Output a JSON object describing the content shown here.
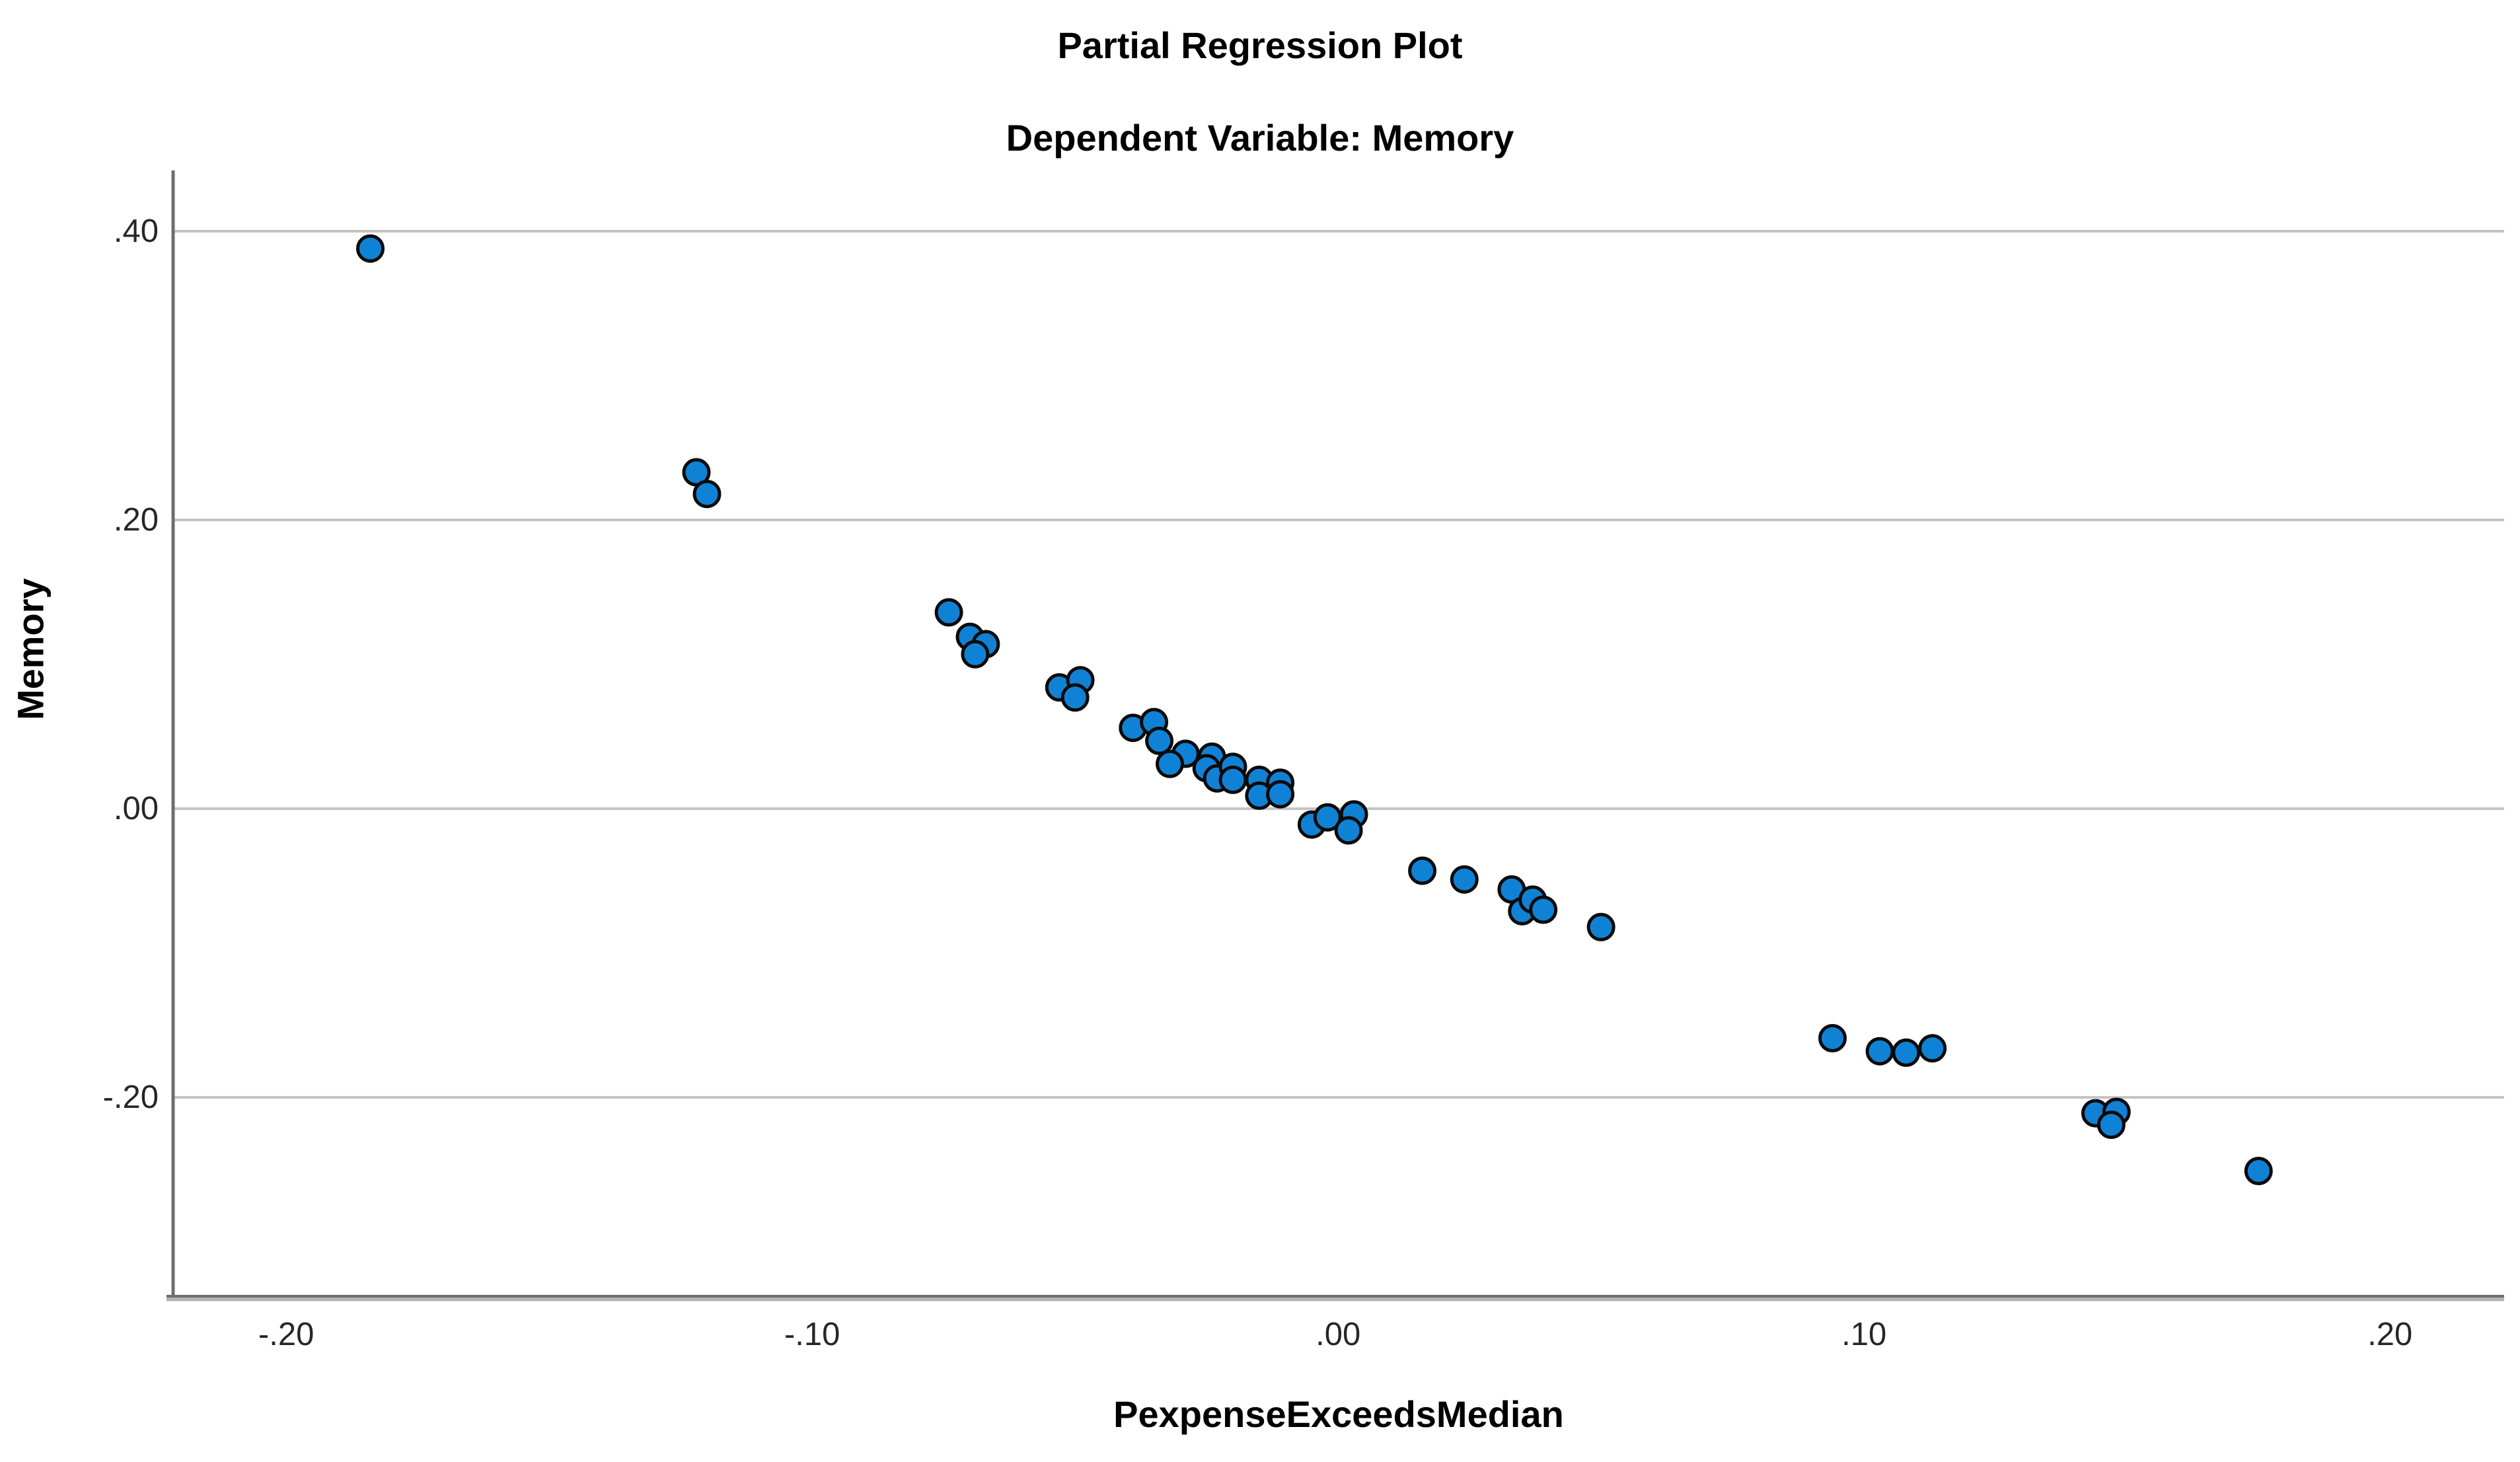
{
  "chart_data": {
    "type": "scatter",
    "title": "Partial Regression Plot",
    "subtitle": "Dependent Variable: Memory",
    "xlabel": "PexpenseExceedsMedian",
    "ylabel": "Memory",
    "xlim": [
      -0.2215,
      0.2217
    ],
    "ylim": [
      -0.3377,
      0.4412
    ],
    "grid": "horizontal-only",
    "legend": "none",
    "x_ticks": [
      {
        "value": -0.2,
        "label": "-.20"
      },
      {
        "value": -0.1,
        "label": "-.10"
      },
      {
        "value": 0.0,
        "label": ".00"
      },
      {
        "value": 0.1,
        "label": ".10"
      },
      {
        "value": 0.2,
        "label": ".20"
      }
    ],
    "y_ticks": [
      {
        "value": 0.4,
        "label": ".40"
      },
      {
        "value": 0.2,
        "label": ".20"
      },
      {
        "value": 0.0,
        "label": ".00"
      },
      {
        "value": -0.2,
        "label": "-.20"
      }
    ],
    "points": [
      [
        -0.184,
        0.388
      ],
      [
        -0.122,
        0.233
      ],
      [
        -0.12,
        0.218
      ],
      [
        -0.074,
        0.136
      ],
      [
        -0.07,
        0.119
      ],
      [
        -0.067,
        0.114
      ],
      [
        -0.069,
        0.107
      ],
      [
        -0.053,
        0.084
      ],
      [
        -0.049,
        0.089
      ],
      [
        -0.05,
        0.077
      ],
      [
        -0.039,
        0.056
      ],
      [
        -0.035,
        0.06
      ],
      [
        -0.034,
        0.047
      ],
      [
        -0.029,
        0.038
      ],
      [
        -0.032,
        0.031
      ],
      [
        -0.024,
        0.036
      ],
      [
        -0.025,
        0.028
      ],
      [
        -0.023,
        0.021
      ],
      [
        -0.02,
        0.029
      ],
      [
        -0.02,
        0.02
      ],
      [
        -0.015,
        0.02
      ],
      [
        -0.015,
        0.009
      ],
      [
        -0.011,
        0.018
      ],
      [
        -0.011,
        0.01
      ],
      [
        -0.005,
        -0.011
      ],
      [
        -0.002,
        -0.006
      ],
      [
        0.003,
        -0.004
      ],
      [
        0.002,
        -0.015
      ],
      [
        0.016,
        -0.043
      ],
      [
        0.024,
        -0.049
      ],
      [
        0.033,
        -0.056
      ],
      [
        0.035,
        -0.071
      ],
      [
        0.037,
        -0.063
      ],
      [
        0.039,
        -0.07
      ],
      [
        0.05,
        -0.082
      ],
      [
        0.094,
        -0.159
      ],
      [
        0.103,
        -0.168
      ],
      [
        0.108,
        -0.169
      ],
      [
        0.113,
        -0.166
      ],
      [
        0.144,
        -0.211
      ],
      [
        0.148,
        -0.21
      ],
      [
        0.147,
        -0.219
      ],
      [
        0.175,
        -0.251
      ]
    ],
    "colors": {
      "marker_fill": "#1082D5",
      "marker_stroke": "#0a0a0a",
      "grid_line": "#c3c3c3",
      "axis_dark": "#6e6e6e",
      "axis_light": "#b2b2b2",
      "tick_text": "#262626",
      "background": "#ffffff"
    },
    "marker": {
      "radius": 19,
      "stroke_width": 5
    }
  }
}
